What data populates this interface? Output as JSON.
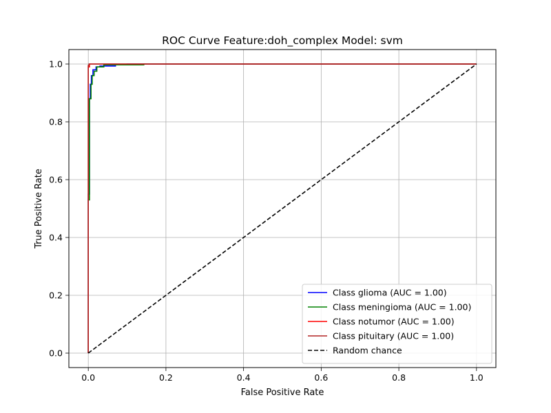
{
  "chart_data": {
    "type": "line",
    "title": "ROC Curve Feature:doh_complex Model: svm",
    "xlabel": "False Positive Rate",
    "ylabel": "True Positive Rate",
    "xlim": [
      -0.05,
      1.05
    ],
    "ylim": [
      -0.05,
      1.05
    ],
    "xticks": [
      0.0,
      0.2,
      0.4,
      0.6,
      0.8,
      1.0
    ],
    "yticks": [
      0.0,
      0.2,
      0.4,
      0.6,
      0.8,
      1.0
    ],
    "x_tick_labels": [
      "0.0",
      "0.2",
      "0.4",
      "0.6",
      "0.8",
      "1.0"
    ],
    "y_tick_labels": [
      "0.0",
      "0.2",
      "0.4",
      "0.6",
      "0.8",
      "1.0"
    ],
    "grid": true,
    "legend_position": "lower-right",
    "series": [
      {
        "name": "Class glioma (AUC = 1.00)",
        "color": "#0000ff",
        "points": [
          [
            0.0,
            0.0
          ],
          [
            0.0,
            0.55
          ],
          [
            0.003,
            0.55
          ],
          [
            0.003,
            0.88
          ],
          [
            0.005,
            0.88
          ],
          [
            0.005,
            0.93
          ],
          [
            0.008,
            0.93
          ],
          [
            0.008,
            0.96
          ],
          [
            0.012,
            0.96
          ],
          [
            0.012,
            0.98
          ],
          [
            0.02,
            0.98
          ],
          [
            0.02,
            0.99
          ],
          [
            0.03,
            0.99
          ],
          [
            0.03,
            0.993
          ],
          [
            0.07,
            0.993
          ],
          [
            0.07,
            0.997
          ],
          [
            0.1,
            0.997
          ],
          [
            0.1,
            1.0
          ],
          [
            1.0,
            1.0
          ]
        ]
      },
      {
        "name": "Class meningioma (AUC = 1.00)",
        "color": "#008000",
        "points": [
          [
            0.0,
            0.0
          ],
          [
            0.0,
            0.53
          ],
          [
            0.003,
            0.53
          ],
          [
            0.003,
            0.88
          ],
          [
            0.007,
            0.88
          ],
          [
            0.007,
            0.93
          ],
          [
            0.01,
            0.93
          ],
          [
            0.01,
            0.96
          ],
          [
            0.015,
            0.96
          ],
          [
            0.015,
            0.975
          ],
          [
            0.022,
            0.975
          ],
          [
            0.022,
            0.99
          ],
          [
            0.04,
            0.99
          ],
          [
            0.04,
            0.997
          ],
          [
            0.143,
            0.997
          ],
          [
            0.143,
            1.0
          ],
          [
            1.0,
            1.0
          ]
        ]
      },
      {
        "name": "Class notumor (AUC = 1.00)",
        "color": "#ff0000",
        "points": [
          [
            0.0,
            0.0
          ],
          [
            0.0,
            0.99
          ],
          [
            0.003,
            0.99
          ],
          [
            0.003,
            1.0
          ],
          [
            1.0,
            1.0
          ]
        ]
      },
      {
        "name": "Class pituitary (AUC = 1.00)",
        "color": "#b22222",
        "points": [
          [
            0.0,
            0.0
          ],
          [
            0.0,
            0.995
          ],
          [
            0.002,
            0.995
          ],
          [
            0.002,
            1.0
          ],
          [
            1.0,
            1.0
          ]
        ]
      },
      {
        "name": "Random chance",
        "color": "#000000",
        "dashed": true,
        "points": [
          [
            0.0,
            0.0
          ],
          [
            1.0,
            1.0
          ]
        ]
      }
    ]
  }
}
